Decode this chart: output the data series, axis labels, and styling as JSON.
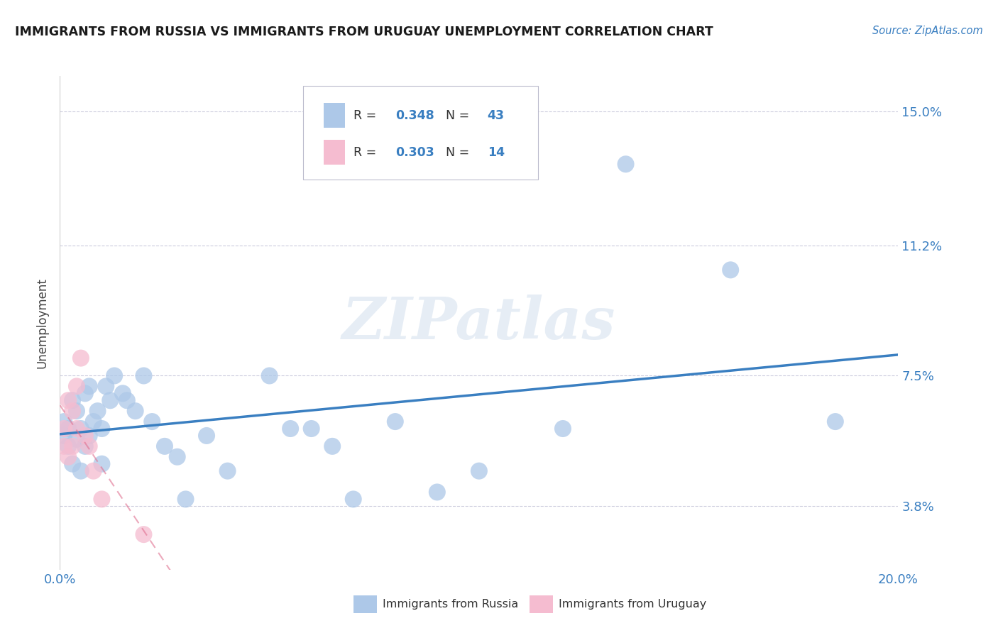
{
  "title": "IMMIGRANTS FROM RUSSIA VS IMMIGRANTS FROM URUGUAY UNEMPLOYMENT CORRELATION CHART",
  "source": "Source: ZipAtlas.com",
  "ylabel": "Unemployment",
  "xlim": [
    0.0,
    0.2
  ],
  "ylim": [
    0.02,
    0.16
  ],
  "yticks": [
    0.038,
    0.075,
    0.112,
    0.15
  ],
  "ytick_labels": [
    "3.8%",
    "7.5%",
    "11.2%",
    "15.0%"
  ],
  "xticks": [
    0.0,
    0.05,
    0.1,
    0.15,
    0.2
  ],
  "xtick_labels": [
    "0.0%",
    "",
    "",
    "",
    "20.0%"
  ],
  "russia_R": 0.348,
  "russia_N": 43,
  "uruguay_R": 0.303,
  "uruguay_N": 14,
  "russia_color": "#adc8e8",
  "uruguay_color": "#f5bcd0",
  "russia_line_color": "#3a7fc1",
  "uruguay_line_color": "#e07090",
  "background_color": "#ffffff",
  "watermark": "ZIPatlas",
  "russia_x": [
    0.001,
    0.001,
    0.002,
    0.002,
    0.003,
    0.003,
    0.004,
    0.004,
    0.005,
    0.005,
    0.006,
    0.006,
    0.007,
    0.007,
    0.008,
    0.009,
    0.01,
    0.01,
    0.011,
    0.012,
    0.013,
    0.015,
    0.016,
    0.018,
    0.02,
    0.022,
    0.025,
    0.028,
    0.03,
    0.035,
    0.04,
    0.05,
    0.055,
    0.06,
    0.065,
    0.07,
    0.08,
    0.09,
    0.1,
    0.12,
    0.135,
    0.16,
    0.185
  ],
  "russia_y": [
    0.058,
    0.062,
    0.055,
    0.06,
    0.05,
    0.068,
    0.065,
    0.057,
    0.06,
    0.048,
    0.07,
    0.055,
    0.072,
    0.058,
    0.062,
    0.065,
    0.06,
    0.05,
    0.072,
    0.068,
    0.075,
    0.07,
    0.068,
    0.065,
    0.075,
    0.062,
    0.055,
    0.052,
    0.04,
    0.058,
    0.048,
    0.075,
    0.06,
    0.06,
    0.055,
    0.04,
    0.062,
    0.042,
    0.048,
    0.06,
    0.135,
    0.105,
    0.062
  ],
  "uruguay_x": [
    0.001,
    0.001,
    0.002,
    0.002,
    0.003,
    0.003,
    0.004,
    0.004,
    0.005,
    0.006,
    0.007,
    0.008,
    0.01,
    0.02
  ],
  "uruguay_y": [
    0.055,
    0.06,
    0.052,
    0.068,
    0.055,
    0.065,
    0.06,
    0.072,
    0.08,
    0.058,
    0.055,
    0.048,
    0.04,
    0.03
  ]
}
